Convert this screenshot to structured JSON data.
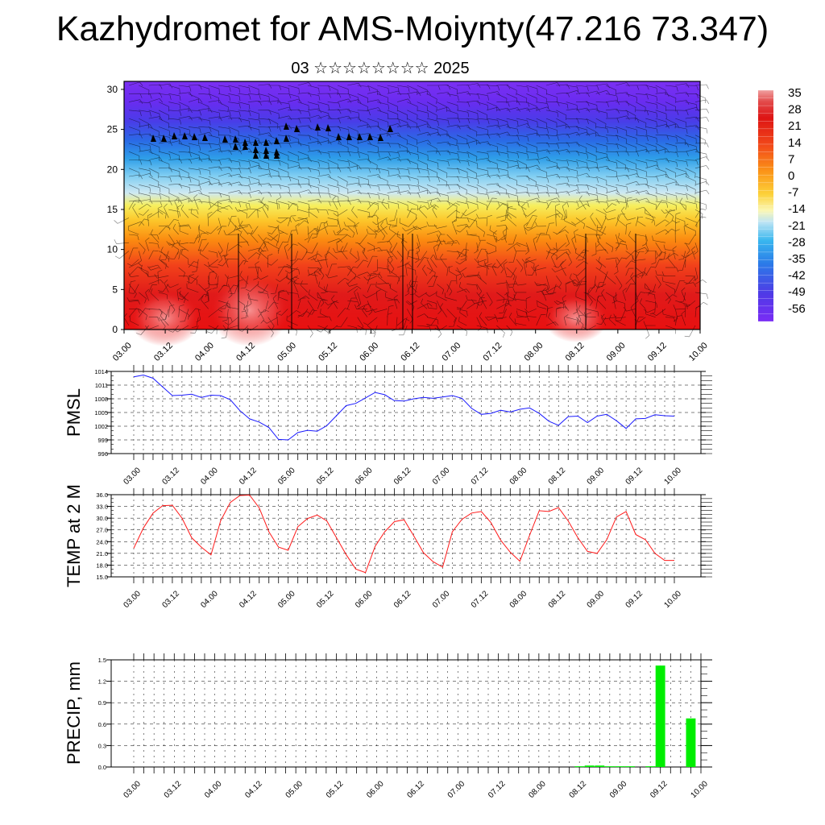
{
  "title": "Kazhydromet for AMS-Moiynty(47.216 73.347)",
  "subtitle": "03 ☆☆☆☆☆☆☆☆ 2025",
  "time_labels": [
    "03.00",
    "03.12",
    "04.00",
    "04.12",
    "05.00",
    "05.12",
    "06.00",
    "06.12",
    "07.00",
    "07.12",
    "08.00",
    "08.12",
    "09.00",
    "09.12",
    "10.00"
  ],
  "colors": {
    "pmsl": "#1a1aff",
    "temp": "#ff1a1a",
    "precip": "#00ee00"
  },
  "chart_data": [
    {
      "type": "heatmap",
      "name": "cross-section",
      "yticks": [
        0,
        5,
        10,
        15,
        20,
        25,
        30
      ],
      "ylim": [
        0,
        31
      ],
      "colorbar_labels": [
        "35",
        "28",
        "21",
        "14",
        "7",
        "0",
        "-7",
        "-14",
        "-21",
        "-28",
        "-35",
        "-42",
        "-49",
        "-56"
      ],
      "colorbar_range": [
        -63,
        42
      ],
      "wind_barbs": true
    },
    {
      "type": "line",
      "ylabel": "PMSL",
      "yticks": [
        "1014",
        "1011",
        "1008",
        "1005",
        "1002",
        "999",
        "996"
      ],
      "ylim": [
        996,
        1014
      ],
      "x": [
        0,
        1,
        2,
        3,
        4,
        5,
        6,
        7,
        8,
        9,
        10,
        11,
        12,
        13,
        14,
        15,
        16,
        17,
        18,
        19,
        20,
        21,
        22,
        23,
        24,
        25,
        26,
        27,
        28,
        29,
        30,
        31,
        32,
        33,
        34,
        35,
        36,
        37,
        38,
        39,
        40,
        41,
        42,
        43,
        44,
        45,
        46,
        47,
        48,
        49,
        50,
        51,
        52,
        53,
        54,
        55,
        56
      ],
      "values": [
        1012.8,
        1013.2,
        1012.5,
        1010.6,
        1008.7,
        1008.8,
        1009.0,
        1008.3,
        1008.8,
        1008.7,
        1007.8,
        1005.4,
        1003.6,
        1002.9,
        1001.7,
        999.1,
        999.0,
        1000.6,
        1001.1,
        1000.9,
        1002.1,
        1004.3,
        1006.5,
        1007.0,
        1008.2,
        1009.4,
        1008.9,
        1007.6,
        1007.5,
        1008.0,
        1008.3,
        1008.1,
        1008.4,
        1008.7,
        1008.1,
        1005.9,
        1004.6,
        1004.8,
        1005.5,
        1005.1,
        1005.7,
        1006.0,
        1004.8,
        1003.1,
        1002.2,
        1004.1,
        1004.2,
        1002.8,
        1004.2,
        1004.6,
        1003.2,
        1001.5,
        1003.6,
        1003.7,
        1004.5,
        1004.3,
        1004.2
      ]
    },
    {
      "type": "line",
      "ylabel": "TEMP at 2 M",
      "yticks": [
        "36.0",
        "33.0",
        "30.0",
        "27.0",
        "24.0",
        "21.0",
        "18.0",
        "15.0"
      ],
      "ylim": [
        15,
        36
      ],
      "x": [
        0,
        1,
        2,
        3,
        4,
        5,
        6,
        7,
        8,
        9,
        10,
        11,
        12,
        13,
        14,
        15,
        16,
        17,
        18,
        19,
        20,
        21,
        22,
        23,
        24,
        25,
        26,
        27,
        28,
        29,
        30,
        31,
        32,
        33,
        34,
        35,
        36,
        37,
        38,
        39,
        40,
        41,
        42,
        43,
        44,
        45,
        46,
        47,
        48,
        49,
        50,
        51,
        52,
        53,
        54,
        55,
        56
      ],
      "values": [
        22.3,
        27.5,
        31.3,
        33.2,
        33.3,
        30.0,
        25.0,
        22.6,
        20.6,
        29.3,
        34.0,
        35.8,
        35.9,
        32.6,
        26.5,
        22.6,
        21.8,
        27.8,
        29.9,
        30.8,
        29.3,
        25.0,
        20.7,
        17.0,
        16.1,
        22.8,
        26.5,
        29.1,
        29.6,
        25.5,
        21.2,
        18.9,
        17.5,
        26.5,
        29.7,
        31.3,
        31.7,
        28.9,
        24.4,
        21.3,
        19.0,
        25.6,
        31.9,
        31.7,
        32.7,
        29.3,
        25.0,
        21.5,
        21.0,
        24.5,
        30.3,
        31.7,
        25.8,
        24.5,
        21.0,
        19.2,
        19.2
      ]
    },
    {
      "type": "bar",
      "ylabel": "PRECIP, mm",
      "yticks": [
        "1.5",
        "1.2",
        "0.9",
        "0.6",
        "0.3",
        "0.0"
      ],
      "ylim": [
        0,
        1.5
      ],
      "x": [
        44,
        45,
        46,
        47,
        48,
        49,
        50,
        51,
        52,
        53,
        54,
        55,
        56
      ],
      "values": [
        0.01,
        0.02,
        0.02,
        0.01,
        0.01,
        0.01,
        0.0,
        0.01,
        1.42,
        0.0,
        0.0,
        0.68,
        0.0
      ]
    }
  ]
}
